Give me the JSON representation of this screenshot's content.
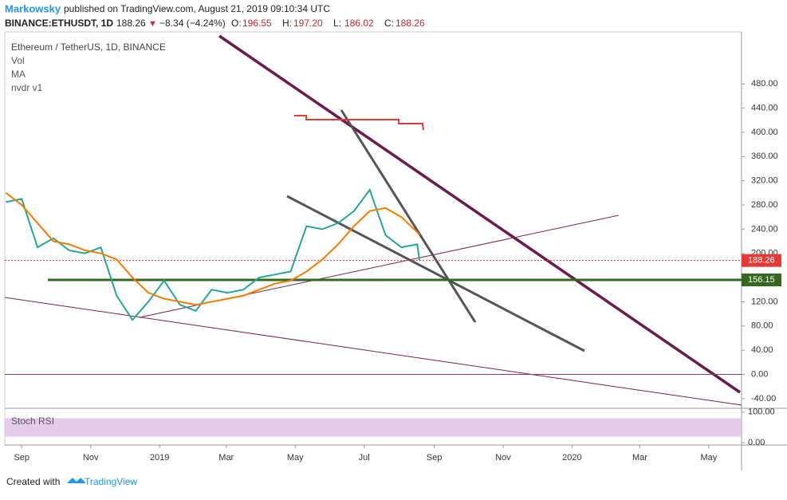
{
  "header": {
    "author": "Markowsky",
    "published": "published on TradingView.com, August 21, 2019 09:10:34 UTC",
    "symbol": "BINANCE:ETHUSDT, 1D",
    "last": "188.26",
    "arrow": "▼",
    "change": "−8.34 (−4.24%)",
    "ohlc": [
      {
        "label": "O:",
        "value": "196.55"
      },
      {
        "label": "H:",
        "value": "197.20"
      },
      {
        "label": "L:",
        "value": "186.02"
      },
      {
        "label": "C:",
        "value": "188.26"
      }
    ]
  },
  "chart_data": {
    "type": "line",
    "title": "Ethereum / TetherUS, 1D, BINANCE",
    "indicators": [
      "Vol",
      "MA",
      "nvdr v1"
    ],
    "x": [
      -14,
      0,
      14,
      28,
      42,
      56,
      70,
      84,
      98,
      112,
      126,
      140,
      154,
      168,
      182,
      196,
      210,
      224,
      238,
      252,
      266,
      280,
      294,
      308,
      322,
      336,
      350,
      352
    ],
    "series": [
      {
        "name": "ETHUSDT",
        "color": "#26a69a",
        "values": [
          285,
          290,
          210,
          225,
          205,
          200,
          210,
          130,
          90,
          120,
          155,
          115,
          105,
          140,
          135,
          140,
          160,
          165,
          170,
          245,
          240,
          250,
          270,
          305,
          230,
          210,
          215,
          188.26
        ]
      },
      {
        "name": "MA",
        "color": "#f57c00",
        "values": [
          300,
          280,
          250,
          220,
          215,
          205,
          200,
          190,
          160,
          135,
          125,
          120,
          115,
          120,
          125,
          130,
          140,
          150,
          155,
          170,
          190,
          215,
          245,
          270,
          275,
          260,
          235,
          230
        ]
      }
    ],
    "xlim": [
      -15,
      637
    ],
    "xticks": [
      {
        "value": 0,
        "label": "Sep"
      },
      {
        "value": 61,
        "label": "Nov"
      },
      {
        "value": 122,
        "label": "2019"
      },
      {
        "value": 181,
        "label": "Mar"
      },
      {
        "value": 242,
        "label": "May"
      },
      {
        "value": 303,
        "label": "Jul"
      },
      {
        "value": 365,
        "label": "Sep"
      },
      {
        "value": 426,
        "label": "Nov"
      },
      {
        "value": 487,
        "label": "2020"
      },
      {
        "value": 547,
        "label": "Mar"
      },
      {
        "value": 608,
        "label": "May"
      }
    ],
    "ylim": [
      -56,
      566
    ],
    "yticks": [
      {
        "value": -40,
        "label": "-40.00"
      },
      {
        "value": 0,
        "label": "0.00"
      },
      {
        "value": 40,
        "label": "40.00"
      },
      {
        "value": 80,
        "label": "80.00"
      },
      {
        "value": 120,
        "label": "120.00"
      },
      {
        "value": 160,
        "label": "160.00"
      },
      {
        "value": 200,
        "label": "200.00"
      },
      {
        "value": 240,
        "label": "240.00"
      },
      {
        "value": 280,
        "label": "280.00"
      },
      {
        "value": 320,
        "label": "320.00"
      },
      {
        "value": 360,
        "label": "360.00"
      },
      {
        "value": 400,
        "label": "400.00"
      },
      {
        "value": 440,
        "label": "440.00"
      },
      {
        "value": 480,
        "label": "480.00"
      }
    ],
    "price_tags": [
      {
        "value": 188.26,
        "label": "188.26",
        "color": "#e53935"
      },
      {
        "value": 156.15,
        "label": "156.15",
        "color": "#33691e"
      }
    ],
    "stoch": {
      "title": "Stoch RSI",
      "ylim": [
        -5,
        110
      ],
      "yticks": [
        {
          "value": 0,
          "label": "0.00"
        },
        {
          "value": 100,
          "label": "100.00"
        }
      ]
    }
  },
  "footer": {
    "created": "Created with",
    "brand": "TradingView"
  }
}
